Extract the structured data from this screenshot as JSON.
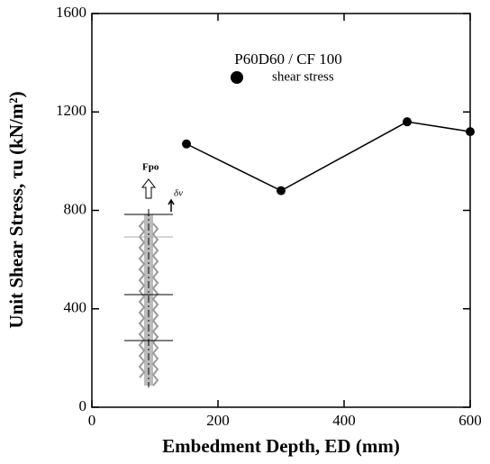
{
  "chart_data": {
    "type": "line",
    "x_label": "Embedment Depth, ED (mm)",
    "y_label": "Unit Shear Stress, τu (kN/m²)",
    "legend_title": "P60D60 / CF 100",
    "annotations": [
      "Fpo",
      "δv"
    ],
    "x": [
      150,
      300,
      500,
      600
    ],
    "series": [
      {
        "name": "shear stress",
        "color": "#000000",
        "values": [
          1070,
          880,
          1160,
          1120
        ]
      }
    ],
    "xlim": [
      0,
      600
    ],
    "xticks": [
      0,
      200,
      400,
      600
    ],
    "ylim": [
      0,
      1600
    ],
    "yticks": [
      0,
      400,
      800,
      1200,
      1600
    ],
    "grid": false
  }
}
